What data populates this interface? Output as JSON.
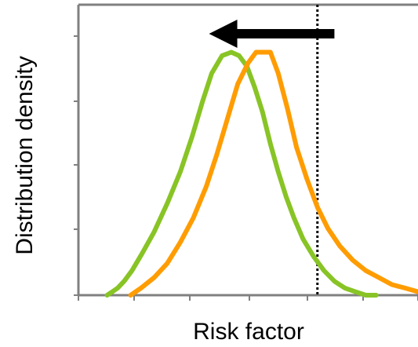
{
  "chart_data": {
    "type": "line",
    "xlabel": "Risk factor",
    "ylabel": "Distribution density",
    "xlim": [
      0,
      13
    ],
    "ylim": [
      0,
      1.1
    ],
    "grid": false,
    "threshold_x": 9.15,
    "arrow": {
      "direction": "left",
      "from_x": 9.8,
      "to_x": 5.0,
      "y": 0.99
    },
    "series": [
      {
        "color": "#88c425",
        "x": [
          1.1,
          1.3,
          1.5,
          1.75,
          2.05,
          2.45,
          2.9,
          3.4,
          3.9,
          4.35,
          4.75,
          5.1,
          5.5,
          5.85,
          6.15,
          6.45,
          6.75,
          7.05,
          7.35,
          7.65,
          7.95,
          8.25,
          8.6,
          9.0,
          9.4,
          9.8,
          10.2,
          10.6,
          11.0,
          11.4
        ],
        "y": [
          0.0,
          0.013,
          0.027,
          0.053,
          0.093,
          0.16,
          0.24,
          0.347,
          0.467,
          0.6,
          0.733,
          0.84,
          0.907,
          0.92,
          0.907,
          0.867,
          0.787,
          0.693,
          0.573,
          0.467,
          0.373,
          0.293,
          0.213,
          0.147,
          0.093,
          0.053,
          0.027,
          0.013,
          0.0,
          0.0
        ]
      },
      {
        "color": "#ff9c00",
        "x": [
          2.0,
          2.4,
          2.9,
          3.4,
          3.9,
          4.4,
          4.9,
          5.3,
          5.7,
          6.1,
          6.5,
          6.8,
          7.05,
          7.35,
          7.65,
          8.0,
          8.35,
          8.75,
          9.15,
          9.55,
          10.0,
          10.5,
          11.0,
          11.5,
          12.0,
          12.5,
          13.0
        ],
        "y": [
          0.0,
          0.027,
          0.067,
          0.12,
          0.2,
          0.293,
          0.413,
          0.533,
          0.667,
          0.8,
          0.88,
          0.92,
          0.92,
          0.92,
          0.84,
          0.707,
          0.56,
          0.44,
          0.333,
          0.253,
          0.187,
          0.133,
          0.093,
          0.067,
          0.04,
          0.027,
          0.013
        ]
      }
    ]
  },
  "colors": {
    "axis": "#808080",
    "threshold": "#000000",
    "arrow": "#000000"
  }
}
